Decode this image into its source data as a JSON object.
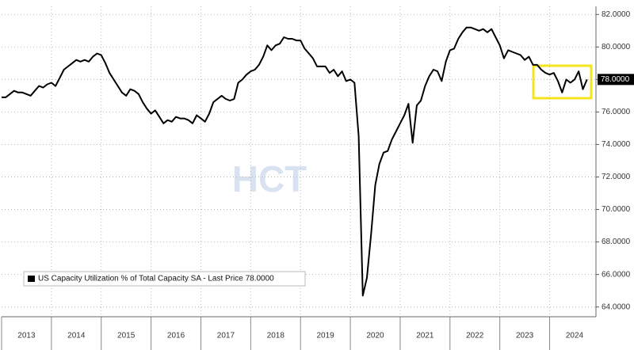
{
  "chart_data": {
    "type": "line",
    "watermark": "HCT",
    "x": [
      2013,
      2013.083,
      2013.167,
      2013.25,
      2013.333,
      2013.417,
      2013.5,
      2013.583,
      2013.667,
      2013.75,
      2013.833,
      2013.917,
      2014,
      2014.083,
      2014.167,
      2014.25,
      2014.333,
      2014.417,
      2014.5,
      2014.583,
      2014.667,
      2014.75,
      2014.833,
      2014.917,
      2015,
      2015.083,
      2015.167,
      2015.25,
      2015.333,
      2015.417,
      2015.5,
      2015.583,
      2015.667,
      2015.75,
      2015.833,
      2015.917,
      2016,
      2016.083,
      2016.167,
      2016.25,
      2016.333,
      2016.417,
      2016.5,
      2016.583,
      2016.667,
      2016.75,
      2016.833,
      2016.917,
      2017,
      2017.083,
      2017.167,
      2017.25,
      2017.333,
      2017.417,
      2017.5,
      2017.583,
      2017.667,
      2017.75,
      2017.833,
      2017.917,
      2018,
      2018.083,
      2018.167,
      2018.25,
      2018.333,
      2018.417,
      2018.5,
      2018.583,
      2018.667,
      2018.75,
      2018.833,
      2018.917,
      2019,
      2019.083,
      2019.167,
      2019.25,
      2019.333,
      2019.417,
      2019.5,
      2019.583,
      2019.667,
      2019.75,
      2019.833,
      2019.917,
      2020,
      2020.083,
      2020.167,
      2020.25,
      2020.333,
      2020.417,
      2020.5,
      2020.583,
      2020.667,
      2020.75,
      2020.833,
      2020.917,
      2021,
      2021.083,
      2021.167,
      2021.25,
      2021.333,
      2021.417,
      2021.5,
      2021.583,
      2021.667,
      2021.75,
      2021.833,
      2021.917,
      2022,
      2022.083,
      2022.167,
      2022.25,
      2022.333,
      2022.417,
      2022.5,
      2022.583,
      2022.667,
      2022.75,
      2022.833,
      2022.917,
      2023,
      2023.083,
      2023.167,
      2023.25,
      2023.333,
      2023.417,
      2023.5,
      2023.583,
      2023.667,
      2023.75,
      2023.833,
      2023.917,
      2024,
      2024.083,
      2024.167,
      2024.25,
      2024.333,
      2024.417,
      2024.5,
      2024.583,
      2024.667,
      2024.75
    ],
    "series": [
      {
        "name": "US Capacity Utilization % of Total Capacity SA - Last Price 78.0000",
        "color": "#000000",
        "values": [
          76.9,
          76.9,
          77.1,
          77.3,
          77.2,
          77.2,
          77.1,
          77.0,
          77.3,
          77.6,
          77.5,
          77.7,
          77.8,
          77.6,
          78.1,
          78.6,
          78.8,
          79.0,
          79.2,
          79.1,
          79.2,
          79.1,
          79.4,
          79.6,
          79.5,
          79.0,
          78.4,
          78.0,
          77.6,
          77.2,
          77.0,
          77.4,
          77.3,
          77.1,
          76.6,
          76.2,
          75.9,
          76.1,
          75.7,
          75.3,
          75.5,
          75.4,
          75.7,
          75.6,
          75.6,
          75.5,
          75.3,
          75.8,
          75.6,
          75.4,
          75.9,
          76.6,
          76.8,
          77.0,
          76.8,
          76.7,
          76.8,
          77.8,
          78.0,
          78.3,
          78.5,
          78.6,
          78.9,
          79.4,
          80.1,
          79.8,
          80.1,
          80.2,
          80.6,
          80.5,
          80.5,
          80.4,
          80.4,
          79.9,
          79.6,
          79.3,
          78.8,
          78.8,
          78.8,
          78.4,
          78.6,
          78.2,
          78.5,
          77.9,
          78.0,
          77.8,
          74.5,
          64.7,
          65.8,
          68.5,
          71.5,
          72.8,
          73.5,
          73.6,
          74.3,
          74.8,
          75.3,
          75.8,
          76.5,
          74.1,
          76.4,
          76.7,
          77.6,
          78.2,
          78.6,
          78.5,
          77.9,
          79.1,
          79.8,
          79.9,
          80.5,
          80.9,
          81.2,
          81.2,
          81.1,
          81.0,
          81.1,
          80.9,
          81.1,
          80.6,
          80.1,
          79.3,
          79.8,
          79.7,
          79.6,
          79.5,
          79.2,
          79.4,
          78.9,
          78.9,
          78.6,
          78.4,
          78.3,
          78.4,
          77.9,
          77.2,
          78.0,
          77.8,
          78.0,
          78.5,
          77.4,
          78.0
        ]
      }
    ],
    "last_value": {
      "value": 78.0,
      "label": "78.0000"
    },
    "xlim": [
      2013,
      2024.93
    ],
    "xticks": [
      2013,
      2014,
      2015,
      2016,
      2017,
      2018,
      2019,
      2020,
      2021,
      2022,
      2023,
      2024
    ],
    "ylim": [
      63.4,
      82.5
    ],
    "yticks": [
      {
        "value": 64,
        "label": "64.0000"
      },
      {
        "value": 66,
        "label": "66.0000"
      },
      {
        "value": 68,
        "label": "68.0000"
      },
      {
        "value": 70,
        "label": "70.0000"
      },
      {
        "value": 72,
        "label": "72.0000"
      },
      {
        "value": 74,
        "label": "74.0000"
      },
      {
        "value": 76,
        "label": "76.0000"
      },
      {
        "value": 78,
        "label": "78.0000"
      },
      {
        "value": 80,
        "label": "80.0000"
      },
      {
        "value": 82,
        "label": "82.0000"
      }
    ],
    "grid": true,
    "legend": "lower left"
  }
}
